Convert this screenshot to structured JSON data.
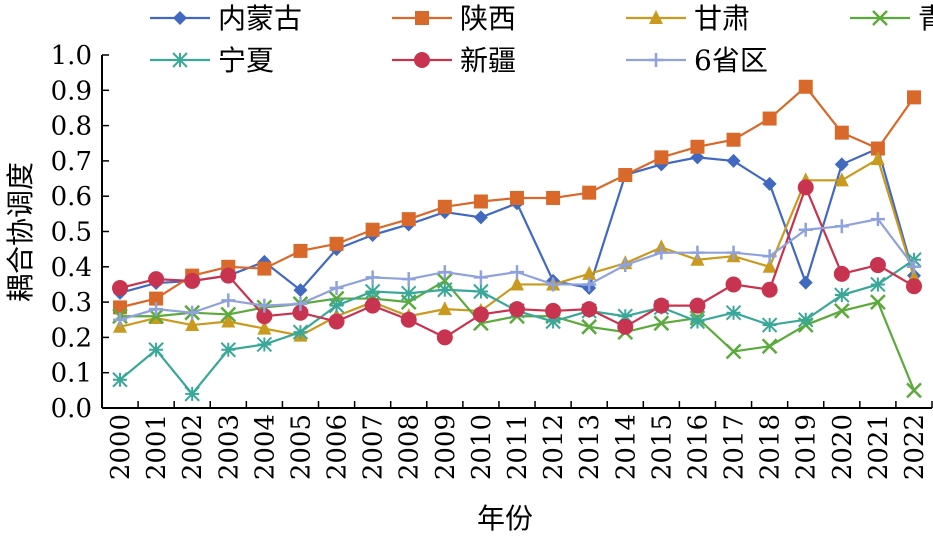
{
  "chart_data": {
    "type": "line",
    "title": "",
    "xlabel": "年份",
    "ylabel": "耦合协调度",
    "ylim": [
      0,
      1.0
    ],
    "yticks": [
      "0.0",
      "0.1",
      "0.2",
      "0.3",
      "0.4",
      "0.5",
      "0.6",
      "0.7",
      "0.8",
      "0.9",
      "1.0"
    ],
    "x": [
      "2000",
      "2001",
      "2002",
      "2003",
      "2004",
      "2005",
      "2006",
      "2007",
      "2008",
      "2009",
      "2010",
      "2011",
      "2012",
      "2013",
      "2014",
      "2015",
      "2016",
      "2017",
      "2018",
      "2019",
      "2020",
      "2021",
      "2022"
    ],
    "legend_position": "top",
    "series": [
      {
        "name": "内蒙古",
        "color": "#4169C0",
        "marker": "diamond",
        "values": [
          0.326,
          0.354,
          0.36,
          0.375,
          0.414,
          0.334,
          0.45,
          0.49,
          0.52,
          0.555,
          0.54,
          0.58,
          0.36,
          0.34,
          0.66,
          0.69,
          0.71,
          0.7,
          0.635,
          0.355,
          0.69,
          0.735,
          0.375
        ]
      },
      {
        "name": "陕西",
        "color": "#D9692A",
        "marker": "square",
        "values": [
          0.285,
          0.31,
          0.375,
          0.4,
          0.395,
          0.445,
          0.465,
          0.505,
          0.535,
          0.57,
          0.585,
          0.595,
          0.595,
          0.61,
          0.66,
          0.71,
          0.74,
          0.76,
          0.82,
          0.91,
          0.78,
          0.735,
          0.88
        ]
      },
      {
        "name": "甘肃",
        "color": "#C99A1E",
        "marker": "triangle",
        "values": [
          0.23,
          0.255,
          0.235,
          0.245,
          0.225,
          0.205,
          0.26,
          0.3,
          0.26,
          0.28,
          0.275,
          0.35,
          0.35,
          0.38,
          0.41,
          0.455,
          0.42,
          0.43,
          0.4,
          0.645,
          0.645,
          0.705,
          0.37
        ]
      },
      {
        "name": "青海",
        "color": "#5BAA3C",
        "marker": "x",
        "values": [
          0.26,
          0.26,
          0.27,
          0.265,
          0.285,
          0.295,
          0.31,
          0.31,
          0.3,
          0.36,
          0.24,
          0.26,
          0.26,
          0.23,
          0.215,
          0.24,
          0.255,
          0.16,
          0.175,
          0.235,
          0.275,
          0.3,
          0.05
        ]
      },
      {
        "name": "宁夏",
        "color": "#3AA898",
        "marker": "star",
        "values": [
          0.08,
          0.165,
          0.04,
          0.165,
          0.18,
          0.215,
          0.29,
          0.33,
          0.325,
          0.335,
          0.33,
          0.275,
          0.245,
          0.275,
          0.26,
          0.285,
          0.245,
          0.27,
          0.235,
          0.25,
          0.32,
          0.35,
          0.42
        ]
      },
      {
        "name": "新疆",
        "color": "#C8344F",
        "marker": "circle",
        "values": [
          0.34,
          0.365,
          0.36,
          0.375,
          0.26,
          0.27,
          0.245,
          0.29,
          0.25,
          0.2,
          0.265,
          0.28,
          0.275,
          0.28,
          0.23,
          0.29,
          0.29,
          0.35,
          0.335,
          0.625,
          0.38,
          0.405,
          0.345
        ]
      },
      {
        "name": "6省区",
        "color": "#8FA2DB",
        "marker": "plus",
        "values": [
          0.25,
          0.28,
          0.27,
          0.305,
          0.29,
          0.295,
          0.34,
          0.37,
          0.365,
          0.385,
          0.37,
          0.385,
          0.35,
          0.35,
          0.405,
          0.44,
          0.44,
          0.44,
          0.43,
          0.505,
          0.515,
          0.535,
          0.4
        ]
      }
    ]
  }
}
